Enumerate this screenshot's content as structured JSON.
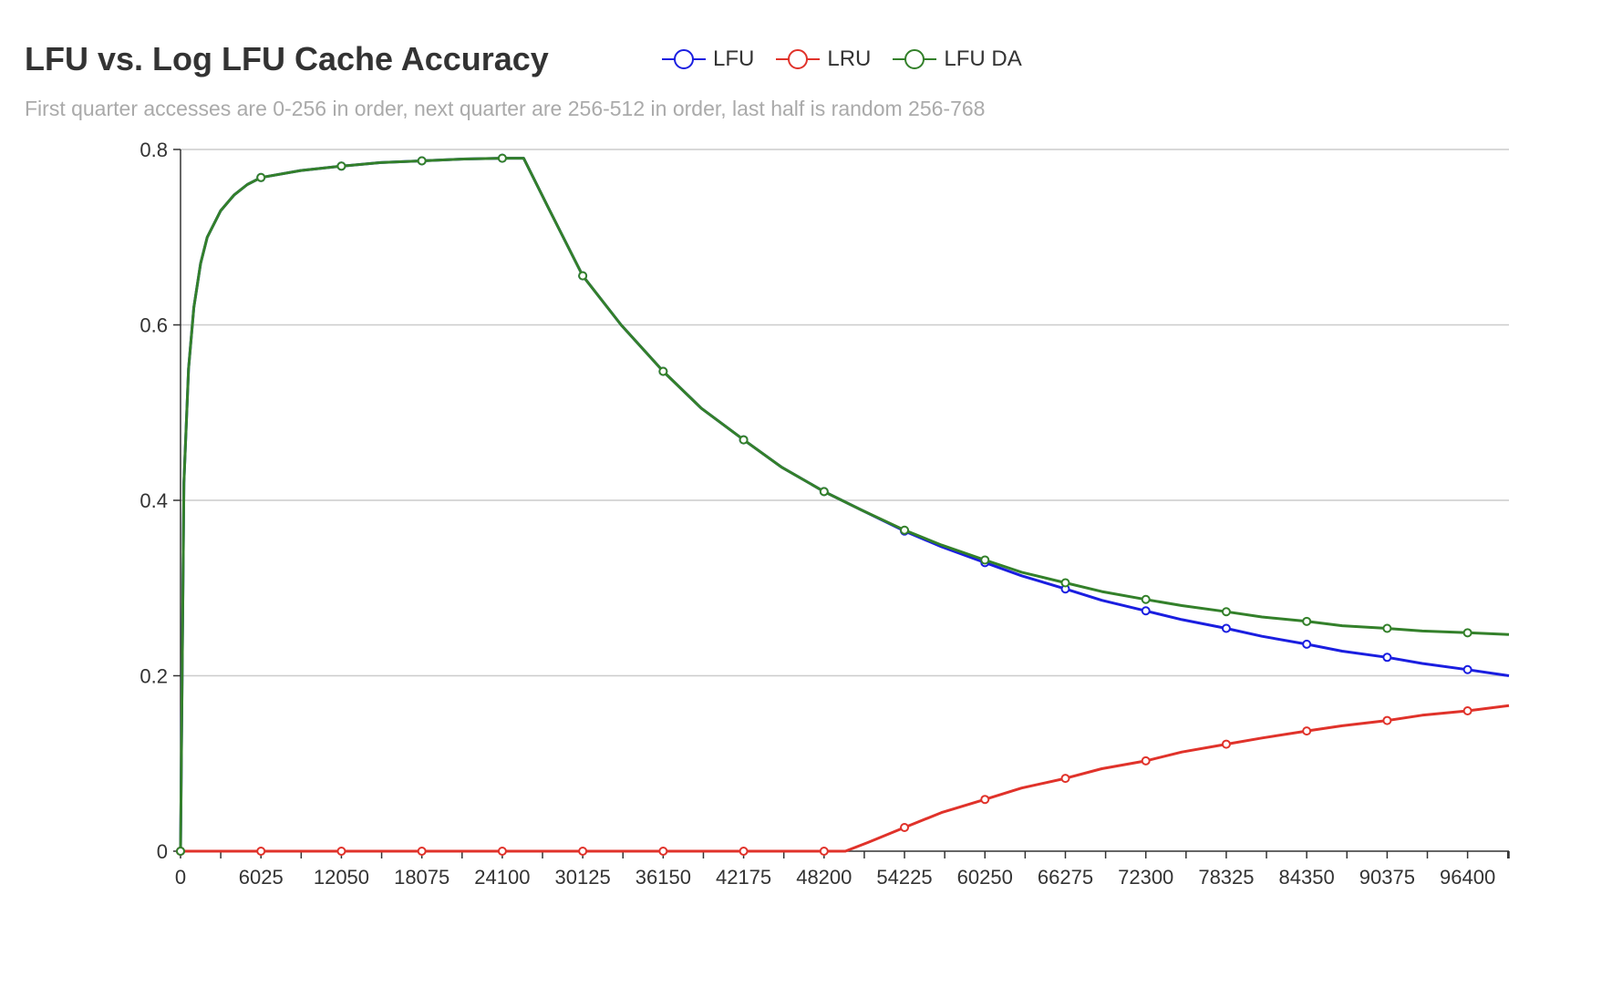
{
  "title": "LFU vs. Log LFU Cache Accuracy",
  "subtitle": "First quarter accesses are 0-256 in order, next quarter are 256-512 in order, last half is random 256-768",
  "legend": [
    {
      "name": "LFU",
      "color": "#1a1ee0"
    },
    {
      "name": "LRU",
      "color": "#e0322a"
    },
    {
      "name": "LFU DA",
      "color": "#33802a"
    }
  ],
  "chart_data": {
    "type": "line",
    "title": "LFU vs. Log LFU Cache Accuracy",
    "subtitle": "First quarter accesses are 0-256 in order, next quarter are 256-512 in order, last half is random 256-768",
    "xlabel": "",
    "ylabel": "",
    "xlim": [
      0,
      99500
    ],
    "ylim": [
      0,
      0.8
    ],
    "x_ticks": [
      0,
      6025,
      12050,
      18075,
      24100,
      30125,
      36150,
      42175,
      48200,
      54225,
      60250,
      66275,
      72300,
      78325,
      84350,
      90375,
      96400
    ],
    "y_ticks": [
      0,
      0.2,
      0.4,
      0.6,
      0.8
    ],
    "y_tick_labels": [
      "0",
      "0.2",
      "0.4",
      "0.6",
      "0.8"
    ],
    "grid": "horizontal",
    "legend_position": "top",
    "series": [
      {
        "name": "LFU",
        "color": "#1a1ee0",
        "x": [
          0,
          256,
          600,
          1000,
          1500,
          2000,
          3000,
          4000,
          5000,
          6025,
          9000,
          12050,
          15000,
          18075,
          21000,
          24100,
          25000,
          25700,
          27500,
          30125,
          33000,
          36150,
          39000,
          42175,
          45000,
          48200,
          51000,
          54225,
          57000,
          60250,
          63000,
          66275,
          69000,
          72300,
          75000,
          78325,
          81000,
          84350,
          87000,
          90375,
          93000,
          96400,
          99500
        ],
        "y": [
          0,
          0.42,
          0.55,
          0.62,
          0.67,
          0.7,
          0.73,
          0.748,
          0.76,
          0.768,
          0.776,
          0.781,
          0.785,
          0.787,
          0.789,
          0.79,
          0.79,
          0.79,
          0.735,
          0.656,
          0.6,
          0.547,
          0.505,
          0.469,
          0.438,
          0.41,
          0.389,
          0.365,
          0.347,
          0.329,
          0.314,
          0.299,
          0.286,
          0.274,
          0.264,
          0.254,
          0.245,
          0.236,
          0.228,
          0.221,
          0.214,
          0.207,
          0.2
        ]
      },
      {
        "name": "LRU",
        "color": "#e0322a",
        "x": [
          0,
          6025,
          12050,
          18075,
          24100,
          30125,
          36150,
          42175,
          48200,
          49800,
          51500,
          54225,
          57000,
          60250,
          63000,
          66275,
          69000,
          72300,
          75000,
          78325,
          81000,
          84350,
          87000,
          90375,
          93000,
          96400,
          99500
        ],
        "y": [
          0,
          0,
          0,
          0,
          0,
          0,
          0,
          0,
          0,
          0,
          0.01,
          0.027,
          0.044,
          0.059,
          0.072,
          0.083,
          0.094,
          0.103,
          0.113,
          0.122,
          0.129,
          0.137,
          0.143,
          0.149,
          0.155,
          0.16,
          0.166
        ]
      },
      {
        "name": "LFU DA",
        "color": "#33802a",
        "x": [
          0,
          256,
          600,
          1000,
          1500,
          2000,
          3000,
          4000,
          5000,
          6025,
          9000,
          12050,
          15000,
          18075,
          21000,
          24100,
          25000,
          25700,
          27500,
          30125,
          33000,
          36150,
          39000,
          42175,
          45000,
          48200,
          51000,
          54225,
          57000,
          60250,
          63000,
          66275,
          69000,
          72300,
          75000,
          78325,
          81000,
          84350,
          87000,
          90375,
          93000,
          96400,
          99500
        ],
        "y": [
          0,
          0.42,
          0.55,
          0.62,
          0.67,
          0.7,
          0.73,
          0.748,
          0.76,
          0.768,
          0.776,
          0.781,
          0.785,
          0.787,
          0.789,
          0.79,
          0.79,
          0.79,
          0.735,
          0.656,
          0.6,
          0.547,
          0.505,
          0.469,
          0.438,
          0.41,
          0.389,
          0.366,
          0.349,
          0.332,
          0.318,
          0.306,
          0.296,
          0.287,
          0.28,
          0.273,
          0.267,
          0.262,
          0.257,
          0.254,
          0.251,
          0.249,
          0.247
        ]
      }
    ],
    "marker_x": [
      0,
      6025,
      12050,
      18075,
      24100,
      30125,
      36150,
      42175,
      48200,
      54225,
      60250,
      66275,
      72300,
      78325,
      84350,
      90375,
      96400
    ]
  }
}
